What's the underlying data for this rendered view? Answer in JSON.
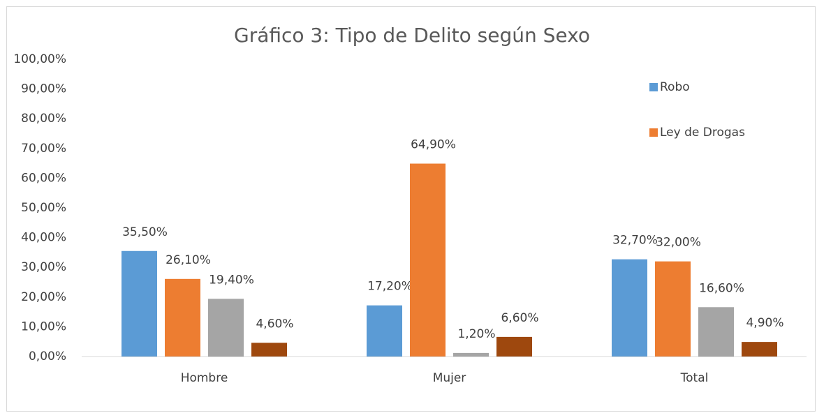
{
  "chart_data": {
    "type": "bar",
    "title": "Gráfico 3: Tipo de Delito según Sexo",
    "categories": [
      "Hombre",
      "Mujer",
      "Total"
    ],
    "series": [
      {
        "name": "Robo",
        "color": "#5b9bd5",
        "values": [
          35.5,
          17.2,
          32.7
        ],
        "value_labels": [
          "35,50%",
          "17,20%",
          "32,70%"
        ]
      },
      {
        "name": "Ley de Drogas",
        "color": "#ed7d31",
        "values": [
          26.1,
          64.9,
          32.0
        ],
        "value_labels": [
          "26,10%",
          "64,90%",
          "32,00%"
        ]
      },
      {
        "color": "#a5a5a5",
        "values": [
          19.4,
          1.2,
          16.6
        ],
        "value_labels": [
          "19,40%",
          "1,20%",
          "16,60%"
        ]
      },
      {
        "color": "#9e480e",
        "values": [
          4.6,
          6.6,
          4.9
        ],
        "value_labels": [
          "4,60%",
          "6,60%",
          "4,90%"
        ]
      }
    ],
    "ylim": [
      0,
      100
    ],
    "yticks": [
      {
        "value": 0,
        "label": "0,00%"
      },
      {
        "value": 10,
        "label": "10,00%"
      },
      {
        "value": 20,
        "label": "20,00%"
      },
      {
        "value": 30,
        "label": "30,00%"
      },
      {
        "value": 40,
        "label": "40,00%"
      },
      {
        "value": 50,
        "label": "50,00%"
      },
      {
        "value": 60,
        "label": "60,00%"
      },
      {
        "value": 70,
        "label": "70,00%"
      },
      {
        "value": 80,
        "label": "80,00%"
      },
      {
        "value": 90,
        "label": "90,00%"
      },
      {
        "value": 100,
        "label": "100,00%"
      }
    ],
    "grid": false,
    "legend": "right"
  }
}
